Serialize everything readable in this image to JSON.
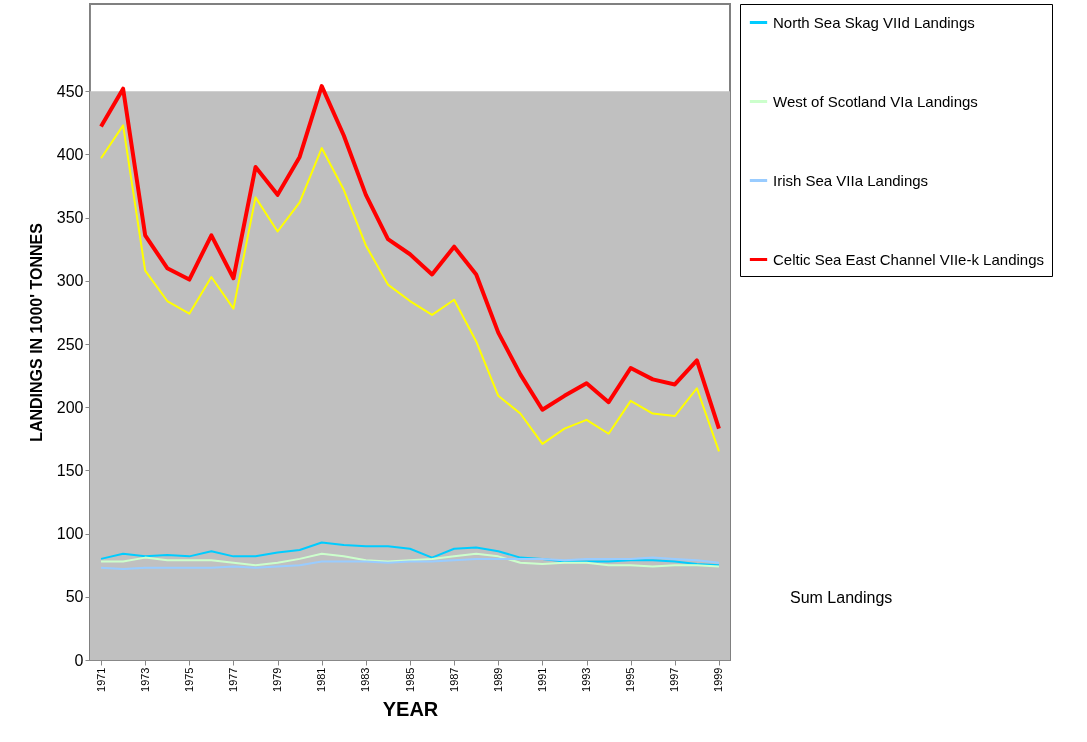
{
  "chart_data": {
    "type": "line",
    "xlabel": "YEAR",
    "ylabel": "LANDINGS IN 1000' TONNES",
    "x": [
      1971,
      1972,
      1973,
      1974,
      1975,
      1976,
      1977,
      1978,
      1979,
      1980,
      1981,
      1982,
      1983,
      1984,
      1985,
      1986,
      1987,
      1988,
      1989,
      1990,
      1991,
      1992,
      1993,
      1994,
      1995,
      1996,
      1997,
      1998,
      1999
    ],
    "xlim": [
      1970.5,
      1999.5
    ],
    "xticks": [
      1971,
      1973,
      1975,
      1977,
      1979,
      1981,
      1983,
      1985,
      1987,
      1989,
      1991,
      1993,
      1995,
      1997,
      1999
    ],
    "ylim": [
      0,
      519
    ],
    "yticks": [
      0,
      50,
      100,
      150,
      200,
      250,
      300,
      350,
      400,
      450
    ],
    "grid": false,
    "legend": "right",
    "bands": [
      {
        "axis": "y",
        "from": 0,
        "to": 450,
        "color": "#c0c0c0"
      }
    ],
    "series": [
      {
        "color": "#ffff00",
        "values": [
          397,
          423,
          308,
          284,
          274,
          303,
          278,
          366,
          339,
          362,
          405,
          372,
          328,
          297,
          284,
          273,
          285,
          252,
          209,
          195,
          171,
          183,
          190,
          179,
          205,
          195,
          193,
          215,
          165
        ]
      },
      {
        "name": "North Sea Skag VIId Landings",
        "color": "#00ccff",
        "values": [
          80,
          84,
          82,
          83,
          82,
          86,
          82,
          82,
          85,
          87,
          93,
          91,
          90,
          90,
          88,
          81,
          88,
          89,
          86,
          81,
          80,
          78,
          78,
          78,
          79,
          79,
          78,
          76,
          75
        ]
      },
      {
        "name": "West of Scotland VIa Landings",
        "color": "#ccffcc",
        "values": [
          78,
          78,
          81,
          79,
          79,
          79,
          77,
          75,
          77,
          80,
          84,
          82,
          79,
          78,
          79,
          80,
          82,
          84,
          82,
          77,
          76,
          77,
          77,
          75,
          75,
          74,
          75,
          75,
          74
        ]
      },
      {
        "name": "Irish Sea VIIa Landings",
        "color": "#99ccff",
        "values": [
          73,
          72,
          73,
          73,
          73,
          73,
          74,
          73,
          74,
          75,
          78,
          78,
          78,
          77,
          78,
          78,
          79,
          80,
          80,
          80,
          80,
          79,
          80,
          80,
          80,
          81,
          80,
          79,
          77
        ]
      },
      {
        "name": "Celtic Sea East Channel VIIe-k Landings",
        "color": "#ff0000",
        "values": [
          422,
          452,
          336,
          310,
          301,
          336,
          302,
          390,
          368,
          398,
          454,
          415,
          368,
          333,
          321,
          305,
          327,
          305,
          259,
          226,
          198,
          209,
          219,
          204,
          231,
          222,
          218,
          237,
          183
        ]
      }
    ],
    "annotations": [
      "Sum Landings"
    ]
  }
}
